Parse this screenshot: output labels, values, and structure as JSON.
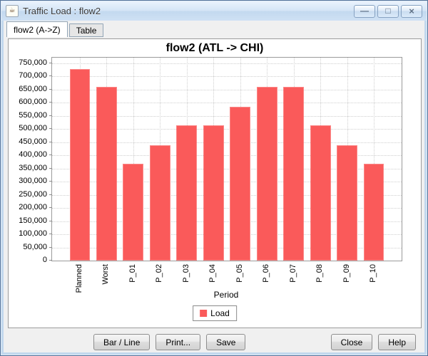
{
  "window": {
    "title": "Traffic Load : flow2",
    "icons": {
      "app": "☕",
      "minimize": "—",
      "maximize": "□",
      "close": "×"
    }
  },
  "tabs": [
    {
      "label": "flow2 (A->Z)",
      "active": true
    },
    {
      "label": "Table",
      "active": false
    }
  ],
  "chart_data": {
    "type": "bar",
    "title": "flow2 (ATL -> CHI)",
    "xlabel": "Period",
    "ylabel": "",
    "categories": [
      "Planned",
      "Worst",
      "P_01",
      "P_02",
      "P_03",
      "P_04",
      "P_05",
      "P_06",
      "P_07",
      "P_08",
      "P_09",
      "P_10"
    ],
    "series": [
      {
        "name": "Load",
        "color": "#fa5a5a",
        "values": [
          728000,
          660000,
          368000,
          438000,
          513000,
          513000,
          585000,
          660000,
          660000,
          513000,
          438000,
          368000
        ]
      }
    ],
    "ylim": [
      0,
      750000
    ],
    "ytick_step": 50000,
    "ytick_labels": [
      "0",
      "50,000",
      "100,000",
      "150,000",
      "200,000",
      "250,000",
      "300,000",
      "350,000",
      "400,000",
      "450,000",
      "500,000",
      "550,000",
      "600,000",
      "650,000",
      "700,000",
      "750,000"
    ],
    "grid": "dotted",
    "legend_position": "bottom"
  },
  "footer_buttons": {
    "bar_line": "Bar / Line",
    "print": "Print...",
    "save": "Save",
    "close": "Close",
    "help": "Help"
  }
}
